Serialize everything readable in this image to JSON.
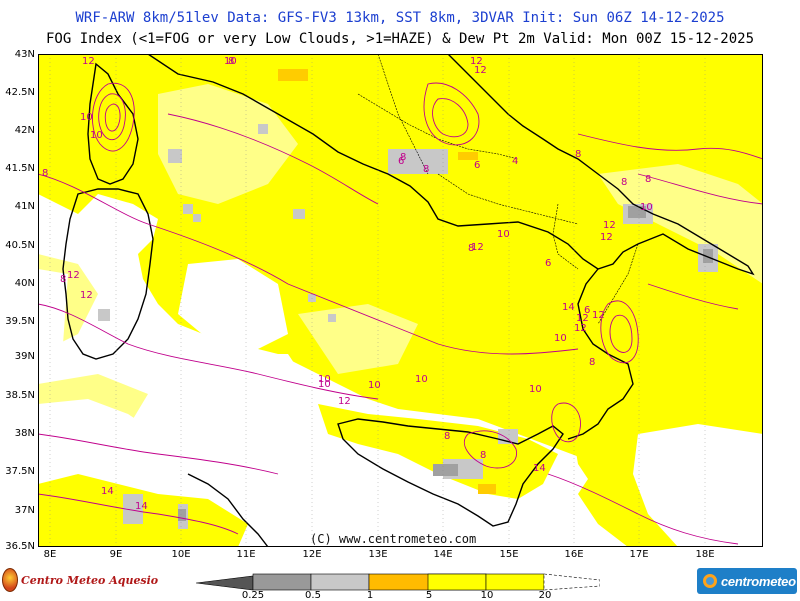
{
  "header": {
    "line1": "WRF-ARW 8km/51lev  Data: GFS-FV3 13km, SST 8km, 3DVAR  Init: Sun 06Z 14-12-2025",
    "line2": "FOG Index (<1=FOG or very Low Clouds, >1=HAZE) & Dew Pt 2m  Valid: Mon 00Z 15-12-2025"
  },
  "map": {
    "lat_labels": [
      "43N",
      "42.5N",
      "42N",
      "41.5N",
      "41N",
      "40.5N",
      "40N",
      "39.5N",
      "39N",
      "38.5N",
      "38N",
      "37.5N",
      "37N",
      "36.5N"
    ],
    "lon_labels": [
      "8E",
      "9E",
      "10E",
      "11E",
      "12E",
      "13E",
      "14E",
      "15E",
      "16E",
      "17E",
      "18E"
    ],
    "credit": "(C) www.centrometeo.com",
    "contour_labels": [
      "12",
      "8",
      "10",
      "12",
      "10",
      "10",
      "8",
      "8",
      "6",
      "12",
      "8",
      "8",
      "6",
      "4",
      "8",
      "8",
      "10",
      "12",
      "12",
      "8",
      "10",
      "12",
      "6",
      "12",
      "8",
      "10",
      "10",
      "10",
      "10",
      "12",
      "8",
      "8",
      "10",
      "12",
      "12",
      "6",
      "8",
      "14",
      "12",
      "14",
      "14",
      "12",
      "10",
      "14"
    ],
    "colors": {
      "haze_yellow": "#ffff00",
      "light_yellow": "#ffff88",
      "amber": "#ffcc00",
      "orange": "#ffbb00",
      "light_grey": "#c8c8c8",
      "mid_grey": "#a0a0a0",
      "dew_point_contour": "#c0008c",
      "coast": "#000000"
    }
  },
  "legend": {
    "labels": [
      "0.25",
      "0.5",
      "1",
      "5",
      "10",
      "20"
    ],
    "colors": [
      "#555555",
      "#999999",
      "#c8c8c8",
      "#ffbb00",
      "#ffff00",
      "#ffff88"
    ]
  },
  "logos": {
    "left_text": "Centro Meteo Aquesio",
    "right_text": "centrometeo"
  }
}
